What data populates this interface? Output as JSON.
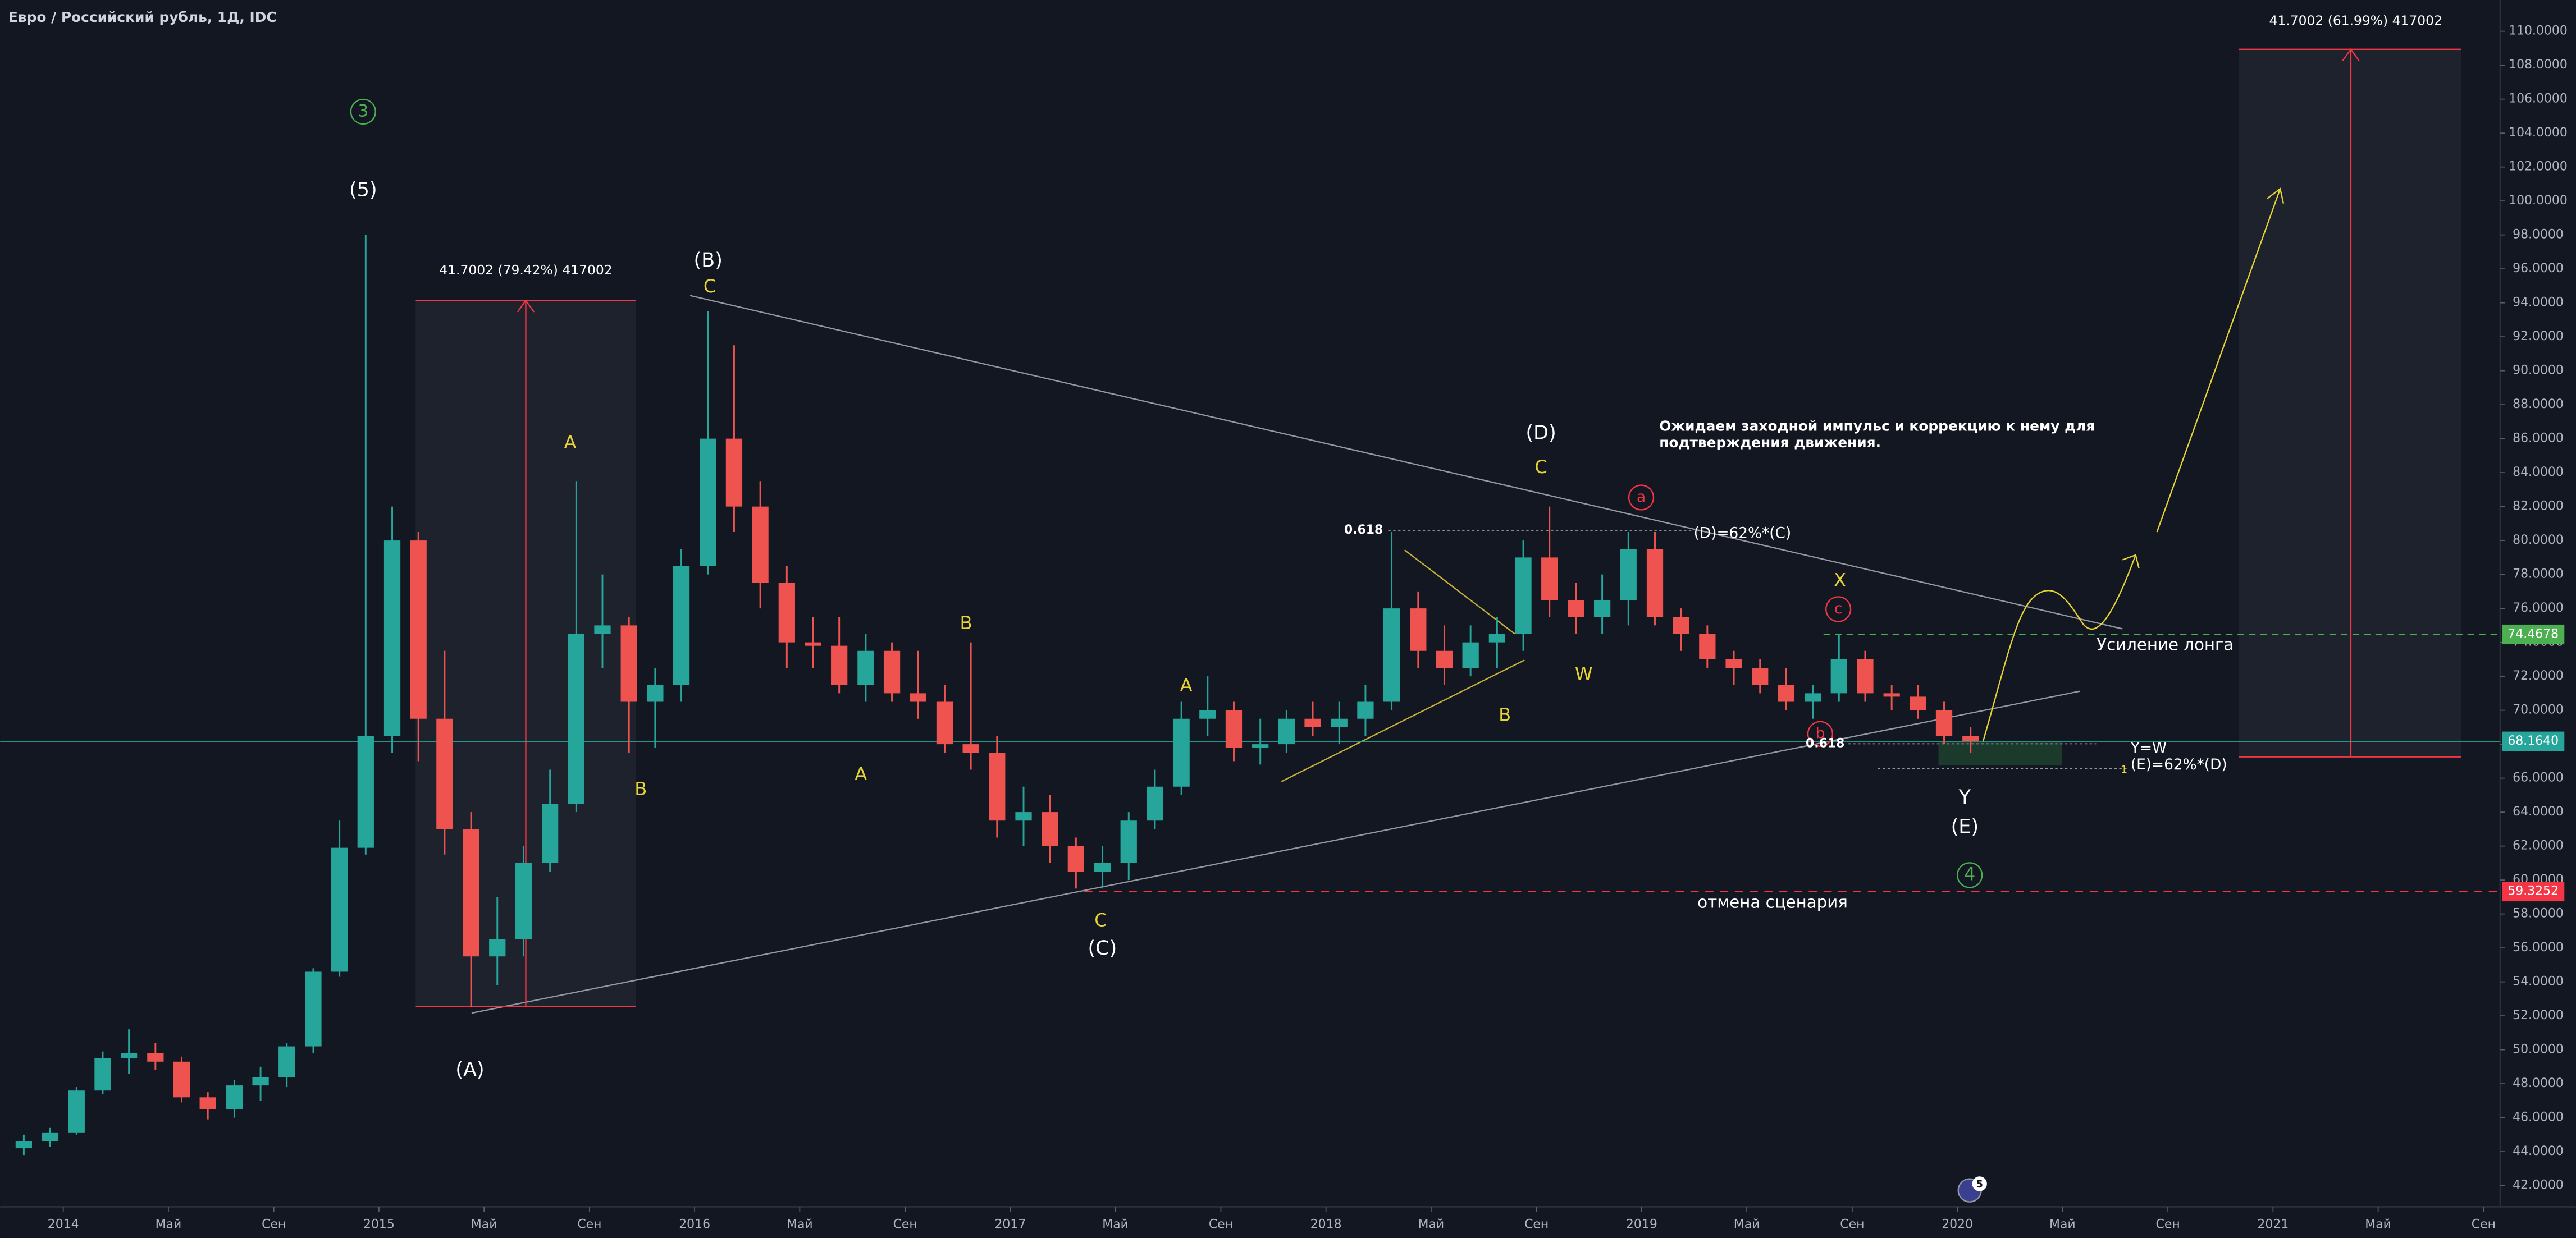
{
  "chart_data": {
    "type": "candlestick",
    "title": "Евро / Российский рубль, 1Д, IDC",
    "x": [
      2013.875,
      2013.958,
      2014.042,
      2014.125,
      2014.208,
      2014.292,
      2014.375,
      2014.458,
      2014.542,
      2014.625,
      2014.708,
      2014.792,
      2014.875,
      2014.958,
      2015.042,
      2015.125,
      2015.208,
      2015.292,
      2015.375,
      2015.458,
      2015.542,
      2015.625,
      2015.708,
      2015.792,
      2015.875,
      2015.958,
      2016.042,
      2016.125,
      2016.208,
      2016.292,
      2016.375,
      2016.458,
      2016.542,
      2016.625,
      2016.708,
      2016.792,
      2016.875,
      2016.958,
      2017.042,
      2017.125,
      2017.208,
      2017.292,
      2017.375,
      2017.458,
      2017.542,
      2017.625,
      2017.708,
      2017.792,
      2017.875,
      2017.958,
      2018.042,
      2018.125,
      2018.208,
      2018.292,
      2018.375,
      2018.458,
      2018.542,
      2018.625,
      2018.708,
      2018.792,
      2018.875,
      2018.958,
      2019.042,
      2019.125,
      2019.208,
      2019.292,
      2019.375,
      2019.458,
      2019.542,
      2019.625,
      2019.708,
      2019.792,
      2019.875,
      2019.958,
      2020.042
    ],
    "open": [
      44.2,
      44.6,
      45.1,
      47.6,
      49.5,
      49.8,
      49.3,
      47.2,
      46.5,
      47.9,
      48.4,
      50.2,
      54.6,
      61.9,
      68.5,
      80.0,
      69.5,
      63.0,
      55.5,
      56.5,
      61.0,
      64.5,
      74.5,
      75.0,
      70.5,
      71.5,
      78.5,
      86.0,
      82.0,
      77.5,
      74.0,
      73.8,
      71.5,
      73.5,
      71.0,
      70.5,
      68.0,
      67.5,
      63.5,
      64.0,
      62.0,
      60.5,
      61.0,
      63.5,
      65.5,
      69.5,
      70.0,
      67.8,
      68.0,
      69.5,
      69.0,
      69.5,
      70.5,
      76.0,
      73.5,
      72.5,
      74.0,
      74.5,
      79.0,
      76.5,
      75.5,
      76.5,
      79.5,
      75.5,
      74.5,
      73.0,
      72.5,
      71.5,
      70.5,
      71.0,
      73.0,
      71.0,
      70.8,
      70.0,
      68.5
    ],
    "high": [
      45.0,
      45.4,
      47.8,
      49.9,
      51.2,
      50.4,
      49.6,
      47.5,
      48.2,
      49.0,
      50.4,
      54.8,
      63.5,
      98.0,
      82.0,
      80.5,
      73.5,
      64.0,
      59.0,
      62.0,
      66.5,
      83.5,
      78.0,
      75.5,
      72.5,
      79.5,
      93.5,
      91.5,
      83.5,
      78.5,
      75.5,
      75.5,
      74.5,
      74.0,
      73.5,
      71.5,
      74.0,
      68.5,
      65.5,
      65.0,
      62.5,
      62.0,
      64.0,
      66.5,
      70.5,
      72.0,
      70.5,
      69.5,
      70.0,
      70.5,
      70.5,
      71.5,
      80.5,
      77.0,
      75.0,
      75.0,
      75.5,
      80.0,
      82.0,
      77.5,
      78.0,
      80.5,
      80.5,
      76.0,
      75.0,
      73.5,
      73.0,
      72.5,
      71.5,
      74.5,
      73.5,
      71.5,
      71.5,
      70.5,
      69.0
    ],
    "low": [
      43.8,
      44.3,
      45.0,
      47.4,
      48.6,
      48.8,
      46.9,
      45.9,
      46.0,
      47.0,
      47.8,
      49.8,
      54.3,
      61.5,
      67.5,
      67.0,
      61.5,
      52.5,
      53.8,
      55.5,
      60.5,
      64.0,
      72.5,
      67.5,
      67.8,
      70.5,
      78.0,
      80.5,
      76.0,
      72.5,
      72.5,
      71.0,
      70.5,
      70.5,
      69.5,
      67.5,
      66.5,
      62.5,
      62.0,
      61.0,
      59.5,
      59.5,
      60.0,
      63.0,
      65.0,
      68.5,
      67.0,
      66.8,
      67.5,
      68.5,
      68.0,
      68.5,
      70.0,
      72.5,
      71.5,
      72.0,
      72.5,
      73.5,
      75.5,
      74.5,
      74.5,
      75.0,
      75.0,
      73.5,
      72.5,
      71.5,
      71.0,
      70.0,
      69.5,
      70.5,
      70.5,
      70.0,
      69.5,
      68.0,
      67.5
    ],
    "close": [
      44.6,
      45.1,
      47.6,
      49.5,
      49.8,
      49.3,
      47.2,
      46.5,
      47.9,
      48.4,
      50.2,
      54.6,
      61.9,
      68.5,
      80.0,
      69.5,
      63.0,
      55.5,
      56.5,
      61.0,
      64.5,
      74.5,
      75.0,
      70.5,
      71.5,
      78.5,
      86.0,
      82.0,
      77.5,
      74.0,
      73.8,
      71.5,
      73.5,
      71.0,
      70.5,
      68.0,
      67.5,
      63.5,
      64.0,
      62.0,
      60.5,
      61.0,
      63.5,
      65.5,
      69.5,
      70.0,
      67.8,
      68.0,
      69.5,
      69.0,
      69.5,
      70.5,
      76.0,
      73.5,
      72.5,
      74.0,
      74.5,
      79.0,
      76.5,
      75.5,
      76.5,
      79.5,
      75.5,
      74.5,
      73.0,
      72.5,
      71.5,
      70.5,
      71.0,
      73.0,
      71.0,
      70.8,
      70.0,
      68.5,
      68.164
    ],
    "up_color": "#26a69a",
    "down_color": "#ef5350",
    "xlim": [
      2013.8,
      2021.72
    ],
    "xticks": [
      2014,
      {
        "value": 2014.333,
        "label": "Май"
      },
      {
        "value": 2014.667,
        "label": "Сен"
      },
      2015,
      {
        "value": 2015.333,
        "label": "Май"
      },
      {
        "value": 2015.667,
        "label": "Сен"
      },
      2016,
      {
        "value": 2016.333,
        "label": "Май"
      },
      {
        "value": 2016.667,
        "label": "Сен"
      },
      2017,
      {
        "value": 2017.333,
        "label": "Май"
      },
      {
        "value": 2017.667,
        "label": "Сен"
      },
      2018,
      {
        "value": 2018.333,
        "label": "Май"
      },
      {
        "value": 2018.667,
        "label": "Сен"
      },
      2019,
      {
        "value": 2019.333,
        "label": "Май"
      },
      {
        "value": 2019.667,
        "label": "Сен"
      },
      2020,
      {
        "value": 2020.333,
        "label": "Май"
      },
      {
        "value": 2020.667,
        "label": "Сен"
      },
      2021,
      {
        "value": 2021.333,
        "label": "Май"
      },
      {
        "value": 2021.667,
        "label": "Сен"
      }
    ],
    "ylim": [
      40.75,
      111.84
    ],
    "yticks": [
      {
        "value": 42,
        "label": "42.0000"
      },
      {
        "value": 44,
        "label": "44.0000"
      },
      {
        "value": 46,
        "label": "46.0000"
      },
      {
        "value": 48,
        "label": "48.0000"
      },
      {
        "value": 50,
        "label": "50.0000"
      },
      {
        "value": 52,
        "label": "52.0000"
      },
      {
        "value": 54,
        "label": "54.0000"
      },
      {
        "value": 56,
        "label": "56.0000"
      },
      {
        "value": 58,
        "label": "58.0000"
      },
      {
        "value": 60,
        "label": "60.0000"
      },
      {
        "value": 62,
        "label": "62.0000"
      },
      {
        "value": 64,
        "label": "64.0000"
      },
      {
        "value": 66,
        "label": "66.0000"
      },
      {
        "value": 68,
        "label": "68.0000"
      },
      {
        "value": 70,
        "label": "70.0000"
      },
      {
        "value": 72,
        "label": "72.0000"
      },
      {
        "value": 74,
        "label": "74.0000"
      },
      {
        "value": 76,
        "label": "76.0000"
      },
      {
        "value": 78,
        "label": "78.0000"
      },
      {
        "value": 80,
        "label": "80.0000"
      },
      {
        "value": 82,
        "label": "82.0000"
      },
      {
        "value": 84,
        "label": "84.0000"
      },
      {
        "value": 86,
        "label": "86.0000"
      },
      {
        "value": 88,
        "label": "88.0000"
      },
      {
        "value": 90,
        "label": "90.0000"
      },
      {
        "value": 92,
        "label": "92.0000"
      },
      {
        "value": 94,
        "label": "94.0000"
      },
      {
        "value": 96,
        "label": "96.0000"
      },
      {
        "value": 98,
        "label": "98.0000"
      },
      {
        "value": 100,
        "label": "100.0000"
      },
      {
        "value": 102,
        "label": "102.0000"
      },
      {
        "value": 104,
        "label": "104.0000"
      },
      {
        "value": 106,
        "label": "106.0000"
      },
      {
        "value": 108,
        "label": "108.0000"
      },
      {
        "value": 110,
        "label": "110.0000"
      }
    ],
    "price_lines": [
      {
        "value": 74.4678,
        "color": "#4caf50"
      },
      {
        "value": 68.164,
        "label": "68.1640",
        "color": "#26a69a"
      },
      {
        "value": 59.3252,
        "color": "#f23645"
      }
    ],
    "annotations": [
      "3",
      "(5)",
      "41.7002 (79.42%) 417002",
      "A",
      "B",
      "(A)",
      "(B)",
      "C",
      "B",
      "A",
      "A",
      "C",
      "(C)",
      "B",
      "0.618",
      "(D)",
      "C",
      "a",
      "(D)=62%*(C)",
      "W",
      "Ожидаем заходной импульс и коррекцию к нему для",
      "подтверждения движения.",
      "X",
      "c",
      "b",
      "0.618",
      "Y=W",
      "(E)=62%*(D)",
      "1",
      "Y",
      "(E)",
      "4",
      "отмена сценария",
      "Усиление лонга",
      "41.7002 (61.99%) 417002",
      "5"
    ]
  }
}
